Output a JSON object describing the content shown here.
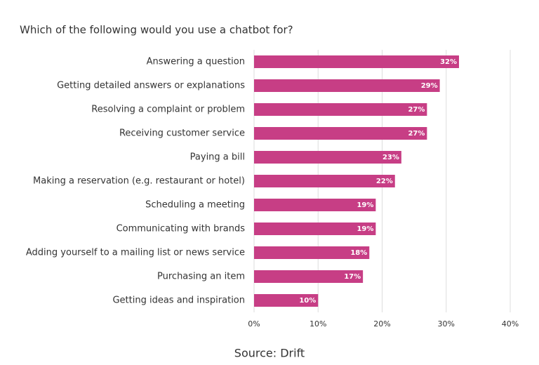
{
  "chart_data": {
    "type": "bar",
    "orientation": "horizontal",
    "title": "Which of the following would you use a chatbot for?",
    "source": "Source: Drift",
    "categories": [
      "Answering a question",
      "Getting detailed answers or explanations",
      "Resolving a complaint or problem",
      "Receiving customer service",
      "Paying a bill",
      "Making a reservation (e.g. restaurant or hotel)",
      "Scheduling a meeting",
      "Communicating with brands",
      "Adding yourself to a mailing list or news service",
      "Purchasing an item",
      "Getting ideas and inspiration"
    ],
    "values": [
      32,
      29,
      27,
      27,
      23,
      22,
      19,
      19,
      18,
      17,
      10
    ],
    "value_labels": [
      "32%",
      "29%",
      "27%",
      "27%",
      "23%",
      "22%",
      "19%",
      "19%",
      "18%",
      "17%",
      "10%"
    ],
    "color": "#c73e85",
    "xlim": [
      0,
      40
    ],
    "xticks": [
      {
        "value": 0,
        "label": "0%"
      },
      {
        "value": 10,
        "label": "10%"
      },
      {
        "value": 20,
        "label": "20%"
      },
      {
        "value": 30,
        "label": "30%"
      },
      {
        "value": 40,
        "label": "40%"
      }
    ],
    "grid": true
  }
}
